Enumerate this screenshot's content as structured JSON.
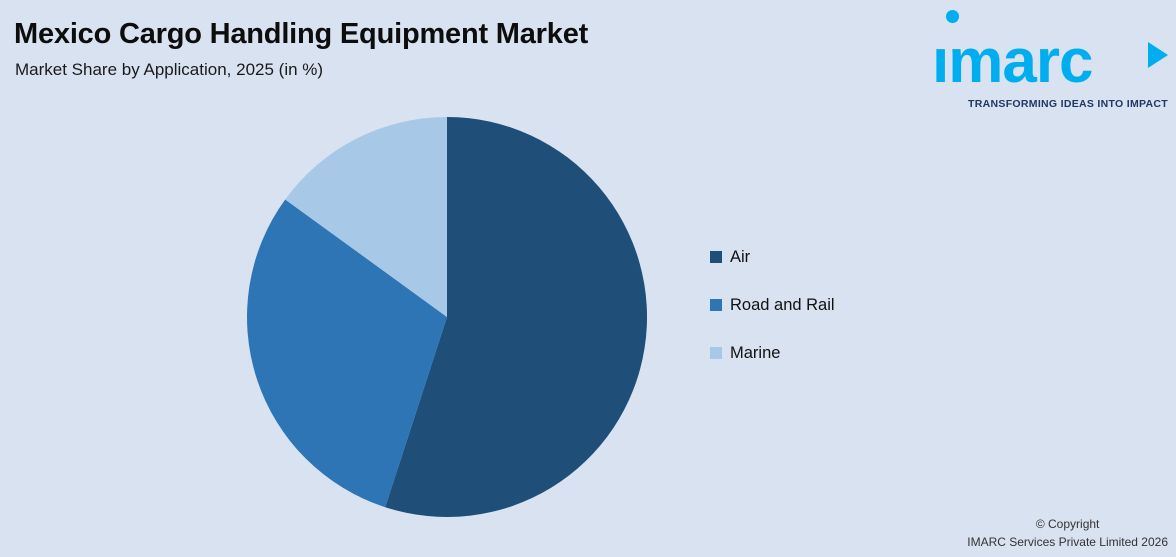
{
  "header": {
    "title": "Mexico Cargo Handling Equipment Market",
    "subtitle": "Market Share by Application, 2025 (in %)"
  },
  "logo": {
    "text": "imarc",
    "tagline": "TRANSFORMING IDEAS INTO IMPACT",
    "brand_color": "#00aeef",
    "tagline_color": "#1f3864"
  },
  "chart_data": {
    "type": "pie",
    "title": "Mexico Cargo Handling Equipment Market",
    "subtitle": "Market Share by Application, 2025 (in %)",
    "categories": [
      "Air",
      "Road and Rail",
      "Marine"
    ],
    "values": [
      55,
      30,
      15
    ],
    "colors": [
      "#1f4e79",
      "#2e75b6",
      "#a8c8e8"
    ],
    "start_angle_deg": 0,
    "direction": "clockwise",
    "legend_position": "right",
    "data_labels": false
  },
  "footer": {
    "copyright_line1": "© Copyright",
    "copyright_line2": "IMARC Services Private Limited 2026"
  }
}
